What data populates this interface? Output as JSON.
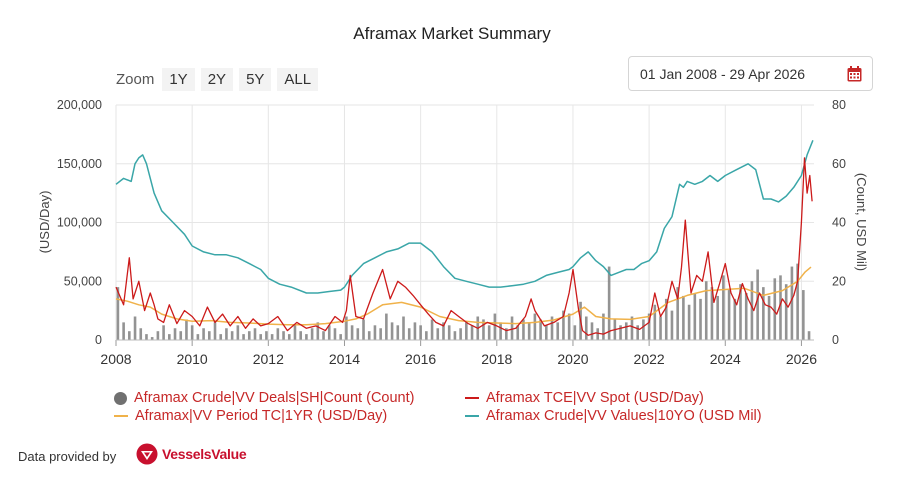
{
  "header": {
    "title": "Aframax Market Summary"
  },
  "zoom": {
    "label": "Zoom",
    "buttons": [
      "1Y",
      "2Y",
      "5Y",
      "ALL"
    ]
  },
  "date_range": {
    "value": "01 Jan 2008 - 29 Apr 2026",
    "icon": "calendar-icon"
  },
  "footer": {
    "text": "Data provided by",
    "brand": "VesselsValue"
  },
  "colors": {
    "deals": "#808080",
    "tce_spot": "#cc1a1a",
    "period_tc": "#f0b24a",
    "values": "#3aa6a8",
    "grid": "#e6e6e6",
    "brand": "#c8102e"
  },
  "chart_data": {
    "type": "line",
    "title": "Aframax Market Summary",
    "xlabel": "",
    "ylabel": "(USD/Day)",
    "ylabel_right": "(Count, USD Mil)",
    "xlim": [
      2008,
      2026.33
    ],
    "ylim": [
      0,
      200000
    ],
    "ylim_right": [
      0,
      80
    ],
    "x_ticks": [
      "2008",
      "2010",
      "2012",
      "2014",
      "2016",
      "2018",
      "2020",
      "2022",
      "2024",
      "2026"
    ],
    "y_ticks": [
      "0",
      "50,000",
      "100,000",
      "150,000",
      "200,000"
    ],
    "y_ticks_right": [
      "0",
      "20",
      "40",
      "60",
      "80"
    ],
    "grid": true,
    "legend_position": "bottom",
    "series": [
      {
        "name": "Aframax Crude|VV Deals|SH|Count (Count)",
        "axis": "right",
        "type": "column",
        "x": [
          2008.05,
          2008.2,
          2008.35,
          2008.5,
          2008.65,
          2008.8,
          2008.95,
          2009.1,
          2009.25,
          2009.4,
          2009.55,
          2009.7,
          2009.85,
          2010.0,
          2010.15,
          2010.3,
          2010.45,
          2010.6,
          2010.75,
          2010.9,
          2011.05,
          2011.2,
          2011.35,
          2011.5,
          2011.65,
          2011.8,
          2011.95,
          2012.1,
          2012.25,
          2012.4,
          2012.55,
          2012.7,
          2012.85,
          2013.0,
          2013.15,
          2013.3,
          2013.45,
          2013.6,
          2013.75,
          2013.9,
          2014.05,
          2014.2,
          2014.35,
          2014.5,
          2014.65,
          2014.8,
          2014.95,
          2015.1,
          2015.25,
          2015.4,
          2015.55,
          2015.7,
          2015.85,
          2016.0,
          2016.15,
          2016.3,
          2016.45,
          2016.6,
          2016.75,
          2016.9,
          2017.05,
          2017.2,
          2017.35,
          2017.5,
          2017.65,
          2017.8,
          2017.95,
          2018.1,
          2018.25,
          2018.4,
          2018.55,
          2018.7,
          2018.85,
          2019.0,
          2019.15,
          2019.3,
          2019.45,
          2019.6,
          2019.75,
          2019.9,
          2020.05,
          2020.2,
          2020.35,
          2020.5,
          2020.65,
          2020.8,
          2020.95,
          2021.1,
          2021.25,
          2021.4,
          2021.55,
          2021.7,
          2021.85,
          2022.0,
          2022.15,
          2022.3,
          2022.45,
          2022.6,
          2022.75,
          2022.9,
          2023.05,
          2023.2,
          2023.35,
          2023.5,
          2023.65,
          2023.8,
          2023.95,
          2024.1,
          2024.25,
          2024.4,
          2024.55,
          2024.7,
          2024.85,
          2025.0,
          2025.15,
          2025.3,
          2025.45,
          2025.6,
          2025.75,
          2025.9,
          2026.05,
          2026.2
        ],
        "values": [
          18,
          6,
          3,
          8,
          4,
          2,
          1,
          3,
          5,
          2,
          4,
          3,
          7,
          5,
          2,
          4,
          3,
          6,
          2,
          4,
          3,
          5,
          2,
          3,
          4,
          2,
          3,
          2,
          4,
          3,
          2,
          5,
          3,
          2,
          4,
          6,
          3,
          5,
          4,
          2,
          8,
          5,
          4,
          7,
          3,
          5,
          4,
          9,
          6,
          5,
          8,
          4,
          6,
          5,
          3,
          7,
          4,
          6,
          5,
          3,
          4,
          6,
          5,
          8,
          7,
          5,
          9,
          6,
          4,
          8,
          5,
          7,
          6,
          9,
          7,
          5,
          8,
          6,
          10,
          9,
          5,
          13,
          8,
          6,
          4,
          9,
          25,
          7,
          5,
          6,
          8,
          5,
          7,
          9,
          12,
          8,
          14,
          10,
          18,
          15,
          12,
          16,
          14,
          20,
          18,
          15,
          22,
          17,
          14,
          19,
          16,
          20,
          24,
          18,
          15,
          21,
          22,
          19,
          25,
          26,
          17,
          3
        ]
      },
      {
        "name": "Aframax TCE|VV Spot (USD/Day)",
        "axis": "left",
        "x": [
          2008.0,
          2008.2,
          2008.35,
          2008.45,
          2008.6,
          2008.75,
          2008.9,
          2009.0,
          2009.1,
          2009.25,
          2009.4,
          2009.6,
          2009.8,
          2010.0,
          2010.2,
          2010.4,
          2010.6,
          2010.8,
          2011.0,
          2011.2,
          2011.4,
          2011.6,
          2011.8,
          2012.0,
          2012.25,
          2012.5,
          2012.75,
          2013.0,
          2013.25,
          2013.5,
          2013.75,
          2013.95,
          2014.05,
          2014.15,
          2014.3,
          2014.5,
          2014.75,
          2015.0,
          2015.2,
          2015.4,
          2015.6,
          2015.8,
          2016.0,
          2016.2,
          2016.4,
          2016.6,
          2016.8,
          2017.0,
          2017.25,
          2017.5,
          2017.75,
          2018.0,
          2018.25,
          2018.5,
          2018.75,
          2018.9,
          2019.0,
          2019.25,
          2019.5,
          2019.75,
          2019.9,
          2020.0,
          2020.15,
          2020.25,
          2020.4,
          2020.6,
          2020.8,
          2021.0,
          2021.25,
          2021.5,
          2021.75,
          2022.0,
          2022.15,
          2022.3,
          2022.45,
          2022.6,
          2022.75,
          2022.85,
          2022.95,
          2023.1,
          2023.25,
          2023.4,
          2023.55,
          2023.7,
          2023.85,
          2024.0,
          2024.15,
          2024.3,
          2024.45,
          2024.6,
          2024.75,
          2024.9,
          2025.05,
          2025.2,
          2025.35,
          2025.5,
          2025.65,
          2025.8,
          2025.9,
          2026.0,
          2026.08,
          2026.15,
          2026.22,
          2026.28
        ],
        "values": [
          45000,
          30000,
          70000,
          35000,
          50000,
          25000,
          40000,
          30000,
          18000,
          15000,
          30000,
          14000,
          25000,
          20000,
          12000,
          28000,
          15000,
          22000,
          12000,
          20000,
          10000,
          18000,
          12000,
          14000,
          20000,
          8000,
          15000,
          10000,
          12000,
          8000,
          20000,
          15000,
          25000,
          55000,
          20000,
          18000,
          40000,
          60000,
          35000,
          50000,
          45000,
          38000,
          30000,
          22000,
          15000,
          12000,
          25000,
          20000,
          14000,
          10000,
          15000,
          12000,
          8000,
          10000,
          20000,
          35000,
          25000,
          12000,
          15000,
          20000,
          40000,
          60000,
          25000,
          8000,
          4000,
          6000,
          5000,
          8000,
          10000,
          12000,
          9000,
          15000,
          40000,
          20000,
          28000,
          50000,
          35000,
          62000,
          102000,
          40000,
          55000,
          50000,
          75000,
          32000,
          48000,
          65000,
          40000,
          30000,
          48000,
          35000,
          25000,
          40000,
          30000,
          28000,
          22000,
          35000,
          28000,
          38000,
          50000,
          100000,
          155000,
          125000,
          140000,
          118000
        ]
      },
      {
        "name": "Aframax|VV Period TC|1YR (USD/Day)",
        "axis": "left",
        "x": [
          2008.0,
          2008.3,
          2008.6,
          2008.9,
          2009.2,
          2009.6,
          2010.0,
          2010.5,
          2011.0,
          2011.5,
          2012.0,
          2012.5,
          2013.0,
          2013.5,
          2014.0,
          2014.3,
          2014.6,
          2015.0,
          2015.5,
          2016.0,
          2016.5,
          2017.0,
          2017.5,
          2018.0,
          2018.5,
          2019.0,
          2019.5,
          2020.0,
          2020.3,
          2020.6,
          2021.0,
          2021.5,
          2022.0,
          2022.5,
          2023.0,
          2023.5,
          2024.0,
          2024.5,
          2025.0,
          2025.5,
          2025.9,
          2026.1,
          2026.25
        ],
        "values": [
          35000,
          33000,
          30000,
          28000,
          22000,
          18000,
          16000,
          16500,
          15000,
          14500,
          13500,
          13000,
          13000,
          14000,
          16000,
          18000,
          22000,
          30000,
          32000,
          28000,
          20000,
          16500,
          15000,
          14500,
          14000,
          15000,
          17000,
          22000,
          28000,
          20000,
          18000,
          17500,
          20000,
          32000,
          38000,
          42000,
          43000,
          44000,
          38000,
          42000,
          50000,
          58000,
          62000
        ]
      },
      {
        "name": "Aframax Crude|VV Values|10YO (USD Mil)",
        "axis": "right",
        "x": [
          2008.0,
          2008.2,
          2008.4,
          2008.5,
          2008.6,
          2008.7,
          2008.8,
          2008.9,
          2009.0,
          2009.2,
          2009.5,
          2009.8,
          2010.0,
          2010.3,
          2010.6,
          2010.9,
          2011.2,
          2011.5,
          2011.8,
          2012.0,
          2012.3,
          2012.6,
          2013.0,
          2013.3,
          2013.6,
          2013.9,
          2014.0,
          2014.2,
          2014.5,
          2014.8,
          2015.1,
          2015.4,
          2015.7,
          2016.0,
          2016.3,
          2016.6,
          2016.9,
          2017.2,
          2017.5,
          2017.8,
          2018.1,
          2018.4,
          2018.7,
          2019.0,
          2019.3,
          2019.6,
          2019.9,
          2020.0,
          2020.2,
          2020.4,
          2020.6,
          2020.8,
          2021.0,
          2021.2,
          2021.4,
          2021.6,
          2021.8,
          2022.0,
          2022.2,
          2022.4,
          2022.6,
          2022.8,
          2022.9,
          2023.0,
          2023.2,
          2023.4,
          2023.6,
          2023.8,
          2024.0,
          2024.3,
          2024.6,
          2024.8,
          2025.0,
          2025.2,
          2025.4,
          2025.6,
          2025.8,
          2026.0,
          2026.15,
          2026.3
        ],
        "values": [
          53,
          55,
          54,
          60,
          62,
          63,
          60,
          55,
          50,
          44,
          40,
          36,
          32,
          30,
          29,
          29,
          28,
          26,
          24,
          21,
          19,
          18,
          16,
          16,
          16.5,
          17,
          18,
          22,
          26,
          28,
          30,
          31,
          33,
          33,
          30,
          25,
          21,
          20,
          19,
          18,
          18,
          18.5,
          19,
          20,
          22,
          23,
          24,
          25,
          28,
          30,
          27,
          25,
          22,
          23,
          24,
          24,
          26,
          27,
          30,
          38,
          42,
          53,
          52,
          54,
          53,
          54,
          56,
          54,
          56,
          58,
          60,
          58,
          48,
          48,
          47,
          49,
          52,
          56,
          63,
          68
        ]
      }
    ]
  }
}
